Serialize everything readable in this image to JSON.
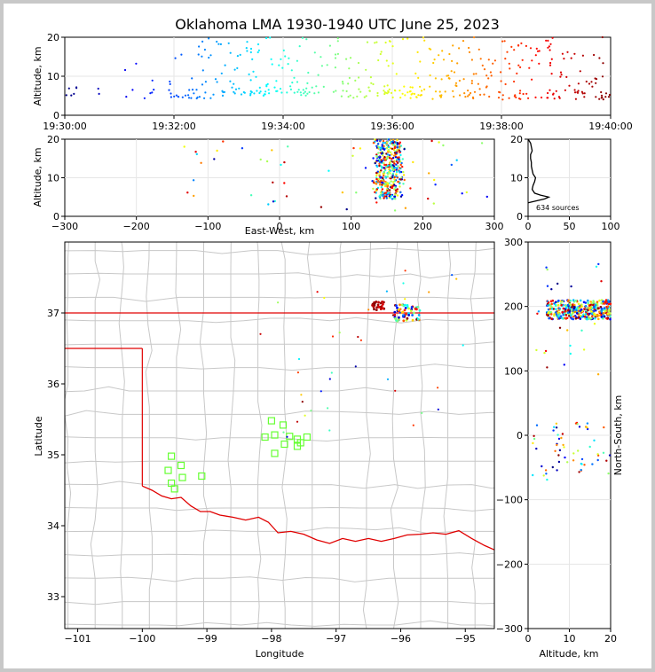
{
  "title": "Oklahoma LMA 1930-1940 UTC June 25, 2023",
  "colors": {
    "panel_border": "#000000",
    "grid": "#e6e6e6",
    "county": "#c8c8c8",
    "state_line": "#e00000",
    "station": "#66ff33",
    "histogram": "#000000"
  },
  "chart_data": [
    {
      "id": "time-altitude",
      "type": "scatter",
      "ylabel": "Altitude, km",
      "xlabel": "",
      "x_tick_labels": [
        "19:30:00",
        "19:32:00",
        "19:34:00",
        "19:36:00",
        "19:38:00",
        "19:40:00"
      ],
      "xlim_minutes": [
        0,
        10
      ],
      "ylim": [
        0,
        20
      ],
      "y_ticks": [
        0,
        10,
        20
      ],
      "grid": true,
      "point_color_scale": "jet by time (blue early, red late)",
      "clusters": [
        {
          "t_range_min": [
            0.0,
            0.8
          ],
          "alt_range": [
            5,
            7
          ],
          "count": 8
        },
        {
          "t_range_min": [
            1.0,
            2.0
          ],
          "alt_range": [
            4,
            17
          ],
          "count": 14
        },
        {
          "t_range_min": [
            2.0,
            3.0
          ],
          "alt_range": [
            4,
            20
          ],
          "count": 45
        },
        {
          "t_range_min": [
            3.0,
            4.0
          ],
          "alt_range": [
            5,
            20
          ],
          "count": 60
        },
        {
          "t_range_min": [
            4.0,
            5.0
          ],
          "alt_range": [
            5,
            20
          ],
          "count": 45
        },
        {
          "t_range_min": [
            5.0,
            6.0
          ],
          "alt_range": [
            4,
            20
          ],
          "count": 55
        },
        {
          "t_range_min": [
            6.0,
            7.0
          ],
          "alt_range": [
            4,
            20
          ],
          "count": 55
        },
        {
          "t_range_min": [
            7.0,
            8.0
          ],
          "alt_range": [
            4,
            20
          ],
          "count": 60
        },
        {
          "t_range_min": [
            8.0,
            9.0
          ],
          "alt_range": [
            4,
            20
          ],
          "count": 60
        },
        {
          "t_range_min": [
            9.0,
            10.0
          ],
          "alt_range": [
            4,
            20
          ],
          "count": 50
        }
      ]
    },
    {
      "id": "eastwest-altitude",
      "type": "scatter",
      "xlabel": "East-West, km",
      "ylabel": "Altitude, km",
      "xlim": [
        -300,
        300
      ],
      "x_ticks": [
        -300,
        -200,
        -100,
        0,
        100,
        200,
        300
      ],
      "ylim": [
        0,
        20
      ],
      "y_ticks": [
        0,
        10,
        20
      ],
      "grid": true,
      "dense_core_x_range": [
        135,
        170
      ],
      "scattered_x_range": [
        -140,
        300
      ]
    },
    {
      "id": "altitude-histogram",
      "type": "line",
      "xlim": [
        0,
        100
      ],
      "x_ticks": [
        0,
        50,
        100
      ],
      "ylim": [
        0,
        20
      ],
      "y_ticks": [
        0,
        10,
        20
      ],
      "annotation": "634 sources",
      "profile_alt": [
        3.5,
        4.5,
        5,
        5.5,
        6,
        7,
        8,
        9,
        10,
        11,
        12,
        13,
        14,
        15,
        16,
        17,
        18,
        19,
        20
      ],
      "profile_count": [
        0,
        20,
        25,
        15,
        8,
        5,
        6,
        8,
        9,
        6,
        5,
        4,
        4,
        3,
        3,
        5,
        4,
        3,
        0
      ]
    },
    {
      "id": "plan-view",
      "type": "scatter",
      "xlabel": "Longitude",
      "ylabel": "Latitude",
      "xlim": [
        -101.2,
        -94.55
      ],
      "ylim": [
        32.55,
        38
      ],
      "x_ticks": [
        -101,
        -100,
        -99,
        -98,
        -97,
        -96,
        -95
      ],
      "y_ticks": [
        33,
        34,
        35,
        36,
        37
      ],
      "x_tick_labels": [
        "−101",
        "−100",
        "−99",
        "−98",
        "−97",
        "−96",
        "−95"
      ],
      "stations": [
        [
          -99.55,
          34.98
        ],
        [
          -99.4,
          34.85
        ],
        [
          -99.6,
          34.78
        ],
        [
          -99.38,
          34.68
        ],
        [
          -99.55,
          34.6
        ],
        [
          -99.5,
          34.52
        ],
        [
          -99.08,
          34.7
        ],
        [
          -98.0,
          35.48
        ],
        [
          -97.82,
          35.42
        ],
        [
          -97.95,
          35.28
        ],
        [
          -98.1,
          35.25
        ],
        [
          -97.72,
          35.26
        ],
        [
          -97.6,
          35.22
        ],
        [
          -97.8,
          35.15
        ],
        [
          -97.55,
          35.17
        ],
        [
          -97.95,
          35.02
        ],
        [
          -97.45,
          35.25
        ],
        [
          -97.6,
          35.12
        ]
      ],
      "source_clusters": [
        {
          "center": [
            -96.35,
            37.1
          ],
          "spread": [
            0.1,
            0.06
          ],
          "count": 25,
          "hue": "red"
        },
        {
          "center": [
            -95.9,
            37.0
          ],
          "spread": [
            0.2,
            0.12
          ],
          "count": 60,
          "hue": "mixed"
        }
      ]
    },
    {
      "id": "altitude-northsouth",
      "type": "scatter",
      "xlabel": "Altitude, km",
      "ylabel": "North-South, km",
      "xlim": [
        0,
        20
      ],
      "x_ticks": [
        0,
        10,
        20
      ],
      "ylim": [
        -300,
        300
      ],
      "y_ticks": [
        -300,
        -200,
        -100,
        0,
        100,
        200,
        300
      ],
      "dense_core_y_range": [
        180,
        210
      ]
    }
  ]
}
